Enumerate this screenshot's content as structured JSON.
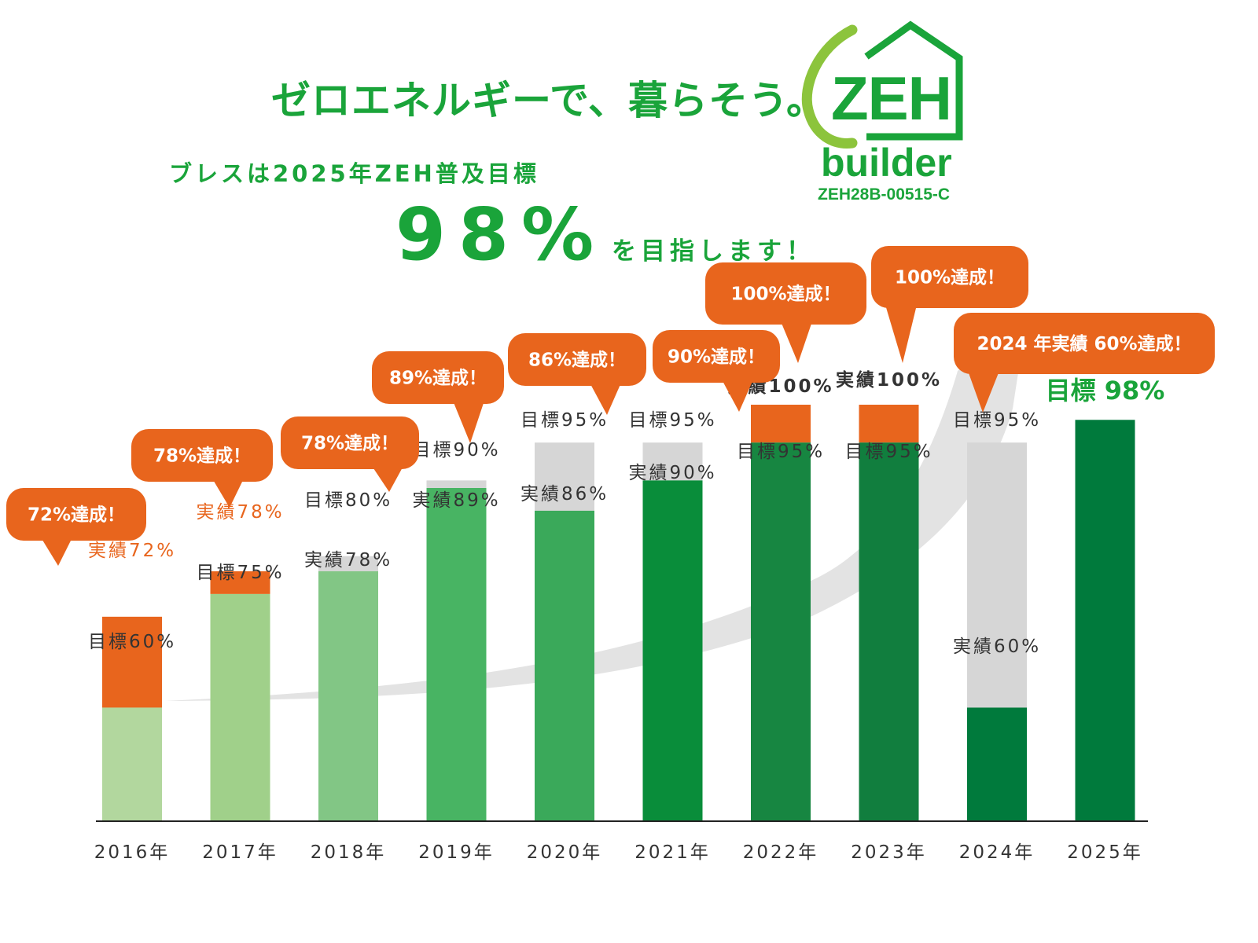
{
  "headline": {
    "text": "ゼロエネルギーで、暮らそう。",
    "subtitle": "ブレスは2025年ZEH普及目標",
    "big_value": "98%",
    "big_tail": "を目指します！"
  },
  "logo": {
    "mark": "ZEH",
    "word": "builder",
    "code": "ZEH28B-00515-C",
    "icon": "house-leaf-icon"
  },
  "colors": {
    "accent_green": "#1aa43a",
    "orange": "#e8651d",
    "grey": "#d6d6d6",
    "swoosh": "#e3e3e3",
    "dark_text": "#333333"
  },
  "chart_data": {
    "type": "bar",
    "categories": [
      "2016年",
      "2017年",
      "2018年",
      "2019年",
      "2020年",
      "2021年",
      "2022年",
      "2023年",
      "2024年",
      "2025年"
    ],
    "series": [
      {
        "name": "目標",
        "values": [
          60,
          75,
          80,
          90,
          95,
          95,
          95,
          95,
          95,
          98
        ]
      },
      {
        "name": "実績",
        "values": [
          72,
          78,
          78,
          89,
          86,
          90,
          100,
          100,
          60,
          null
        ]
      }
    ],
    "ylim": [
      0,
      100
    ],
    "bar_colors": [
      "#b2d79e",
      "#a0d08a",
      "#82c685",
      "#48b463",
      "#3aa95a",
      "#098d3a",
      "#178641",
      "#117e3e",
      "#007a3c",
      "#007a3c"
    ],
    "value_labels": [
      [
        {
          "text": "実績72%",
          "color": "orange"
        },
        {
          "text": "目標60%",
          "color": "dark"
        }
      ],
      [
        {
          "text": "実績78%",
          "color": "orange"
        },
        {
          "text": "目標75%",
          "color": "dark"
        }
      ],
      [
        {
          "text": "目標80%",
          "color": "dark"
        },
        {
          "text": "実績78%",
          "color": "dark"
        }
      ],
      [
        {
          "text": "目標90%",
          "color": "dark"
        },
        {
          "text": "実績89%",
          "color": "dark"
        }
      ],
      [
        {
          "text": "目標95%",
          "color": "dark"
        },
        {
          "text": "実績86%",
          "color": "dark"
        }
      ],
      [
        {
          "text": "目標95%",
          "color": "dark"
        },
        {
          "text": "実績90%",
          "color": "dark"
        }
      ],
      [
        {
          "text": "実績100%",
          "color": "bold"
        },
        {
          "text": "目標95%",
          "color": "dark"
        }
      ],
      [
        {
          "text": "実績100%",
          "color": "bold"
        },
        {
          "text": "目標95%",
          "color": "dark"
        }
      ],
      [
        {
          "text": "目標95%",
          "color": "dark"
        },
        {
          "text": "実績60%",
          "color": "dark"
        }
      ],
      [
        {
          "text": "目標 98%",
          "color": "green"
        }
      ]
    ],
    "annotations": [
      "72%達成！",
      "78%達成！",
      "78%達成！",
      "89%達成！",
      "86%達成！",
      "90%達成！",
      "100%達成！",
      "100%達成！",
      "2024 年実績 60%達成！"
    ]
  }
}
